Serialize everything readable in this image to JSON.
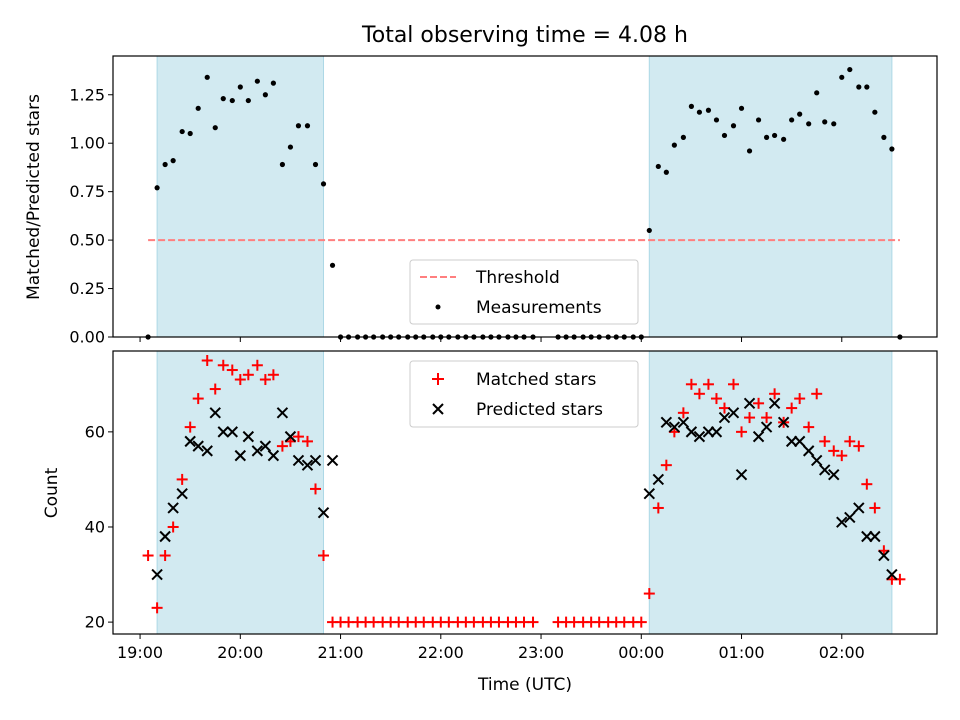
{
  "title": "Total observing time = 4.08 h",
  "x_axis_label": "Time (UTC)",
  "chart_data": [
    {
      "type": "scatter",
      "panel": "top",
      "ylabel": "Matched/Predicted stars",
      "ylim": [
        0,
        1.45
      ],
      "y_ticks": [
        0.0,
        0.25,
        0.5,
        0.75,
        1.0,
        1.25
      ],
      "y_tick_labels": [
        "0.00",
        "0.25",
        "0.50",
        "0.75",
        "1.00",
        "1.25"
      ],
      "xlim_hours": [
        18.73,
        26.95
      ],
      "shaded_intervals_hours": [
        [
          19.17,
          20.83
        ],
        [
          24.08,
          26.5
        ]
      ],
      "threshold": {
        "name": "Threshold",
        "y": 0.5,
        "x_range_hours": [
          19.08,
          26.58
        ],
        "color": "#ff7f7f"
      },
      "legend": {
        "placement": "lower center",
        "entries": [
          "Threshold",
          "Measurements"
        ]
      },
      "series": [
        {
          "name": "Measurements",
          "marker": "dot",
          "color": "#000000",
          "points": [
            [
              19.08,
              0.0
            ],
            [
              19.17,
              0.77
            ],
            [
              19.25,
              0.89
            ],
            [
              19.33,
              0.91
            ],
            [
              19.42,
              1.06
            ],
            [
              19.5,
              1.05
            ],
            [
              19.58,
              1.18
            ],
            [
              19.67,
              1.34
            ],
            [
              19.75,
              1.08
            ],
            [
              19.83,
              1.23
            ],
            [
              19.92,
              1.22
            ],
            [
              20.0,
              1.29
            ],
            [
              20.08,
              1.22
            ],
            [
              20.17,
              1.32
            ],
            [
              20.25,
              1.25
            ],
            [
              20.33,
              1.31
            ],
            [
              20.42,
              0.89
            ],
            [
              20.5,
              0.98
            ],
            [
              20.58,
              1.09
            ],
            [
              20.67,
              1.09
            ],
            [
              20.75,
              0.89
            ],
            [
              20.83,
              0.79
            ],
            [
              20.92,
              0.37
            ],
            [
              21.0,
              0.0
            ],
            [
              21.08,
              0.0
            ],
            [
              21.17,
              0.0
            ],
            [
              21.25,
              0.0
            ],
            [
              21.33,
              0.0
            ],
            [
              21.42,
              0.0
            ],
            [
              21.5,
              0.0
            ],
            [
              21.58,
              0.0
            ],
            [
              21.67,
              0.0
            ],
            [
              21.75,
              0.0
            ],
            [
              21.83,
              0.0
            ],
            [
              21.92,
              0.0
            ],
            [
              22.0,
              0.0
            ],
            [
              22.08,
              0.0
            ],
            [
              22.17,
              0.0
            ],
            [
              22.25,
              0.0
            ],
            [
              22.33,
              0.0
            ],
            [
              22.42,
              0.0
            ],
            [
              22.5,
              0.0
            ],
            [
              22.58,
              0.0
            ],
            [
              22.67,
              0.0
            ],
            [
              22.75,
              0.0
            ],
            [
              22.83,
              0.0
            ],
            [
              22.92,
              0.0
            ],
            [
              23.17,
              0.0
            ],
            [
              23.25,
              0.0
            ],
            [
              23.33,
              0.0
            ],
            [
              23.42,
              0.0
            ],
            [
              23.5,
              0.0
            ],
            [
              23.58,
              0.0
            ],
            [
              23.67,
              0.0
            ],
            [
              23.75,
              0.0
            ],
            [
              23.83,
              0.0
            ],
            [
              23.92,
              0.0
            ],
            [
              24.0,
              0.0
            ],
            [
              24.08,
              0.55
            ],
            [
              24.17,
              0.88
            ],
            [
              24.25,
              0.85
            ],
            [
              24.33,
              0.99
            ],
            [
              24.42,
              1.03
            ],
            [
              24.5,
              1.19
            ],
            [
              24.58,
              1.16
            ],
            [
              24.67,
              1.17
            ],
            [
              24.75,
              1.12
            ],
            [
              24.83,
              1.04
            ],
            [
              24.92,
              1.09
            ],
            [
              25.0,
              1.18
            ],
            [
              25.08,
              0.96
            ],
            [
              25.17,
              1.12
            ],
            [
              25.25,
              1.03
            ],
            [
              25.33,
              1.04
            ],
            [
              25.42,
              1.02
            ],
            [
              25.5,
              1.12
            ],
            [
              25.58,
              1.15
            ],
            [
              25.67,
              1.1
            ],
            [
              25.75,
              1.26
            ],
            [
              25.83,
              1.11
            ],
            [
              25.92,
              1.1
            ],
            [
              26.0,
              1.34
            ],
            [
              26.08,
              1.38
            ],
            [
              26.17,
              1.29
            ],
            [
              26.25,
              1.29
            ],
            [
              26.33,
              1.16
            ],
            [
              26.42,
              1.03
            ],
            [
              26.5,
              0.97
            ],
            [
              26.58,
              0.0
            ]
          ]
        }
      ]
    },
    {
      "type": "scatter",
      "panel": "bottom",
      "ylabel": "Count",
      "ylim": [
        17.5,
        77
      ],
      "y_ticks": [
        20,
        40,
        60
      ],
      "y_tick_labels": [
        "20",
        "40",
        "60"
      ],
      "xlim_hours": [
        18.73,
        26.95
      ],
      "x_ticks_hours": [
        19,
        20,
        21,
        22,
        23,
        24,
        25,
        26
      ],
      "x_tick_labels": [
        "19:00",
        "20:00",
        "21:00",
        "22:00",
        "23:00",
        "00:00",
        "01:00",
        "02:00"
      ],
      "shaded_intervals_hours": [
        [
          19.17,
          20.83
        ],
        [
          24.08,
          26.5
        ]
      ],
      "legend": {
        "placement": "upper center",
        "entries": [
          "Matched stars",
          "Predicted stars"
        ]
      },
      "series": [
        {
          "name": "Matched stars",
          "marker": "plus",
          "color": "#ff0000",
          "points": [
            [
              19.08,
              34
            ],
            [
              19.17,
              23
            ],
            [
              19.25,
              34
            ],
            [
              19.33,
              40
            ],
            [
              19.42,
              50
            ],
            [
              19.5,
              61
            ],
            [
              19.58,
              67
            ],
            [
              19.67,
              75
            ],
            [
              19.75,
              69
            ],
            [
              19.83,
              74
            ],
            [
              19.92,
              73
            ],
            [
              20.0,
              71
            ],
            [
              20.08,
              72
            ],
            [
              20.17,
              74
            ],
            [
              20.25,
              71
            ],
            [
              20.33,
              72
            ],
            [
              20.42,
              57
            ],
            [
              20.5,
              58
            ],
            [
              20.58,
              59
            ],
            [
              20.67,
              58
            ],
            [
              20.75,
              48
            ],
            [
              20.83,
              34
            ],
            [
              20.92,
              20
            ],
            [
              21.0,
              20
            ],
            [
              21.08,
              20
            ],
            [
              21.17,
              20
            ],
            [
              21.25,
              20
            ],
            [
              21.33,
              20
            ],
            [
              21.42,
              20
            ],
            [
              21.5,
              20
            ],
            [
              21.58,
              20
            ],
            [
              21.67,
              20
            ],
            [
              21.75,
              20
            ],
            [
              21.83,
              20
            ],
            [
              21.92,
              20
            ],
            [
              22.0,
              20
            ],
            [
              22.08,
              20
            ],
            [
              22.17,
              20
            ],
            [
              22.25,
              20
            ],
            [
              22.33,
              20
            ],
            [
              22.42,
              20
            ],
            [
              22.5,
              20
            ],
            [
              22.58,
              20
            ],
            [
              22.67,
              20
            ],
            [
              22.75,
              20
            ],
            [
              22.83,
              20
            ],
            [
              22.92,
              20
            ],
            [
              23.17,
              20
            ],
            [
              23.25,
              20
            ],
            [
              23.33,
              20
            ],
            [
              23.42,
              20
            ],
            [
              23.5,
              20
            ],
            [
              23.58,
              20
            ],
            [
              23.67,
              20
            ],
            [
              23.75,
              20
            ],
            [
              23.83,
              20
            ],
            [
              23.92,
              20
            ],
            [
              24.0,
              20
            ],
            [
              24.08,
              26
            ],
            [
              24.17,
              44
            ],
            [
              24.25,
              53
            ],
            [
              24.33,
              60
            ],
            [
              24.42,
              64
            ],
            [
              24.5,
              70
            ],
            [
              24.58,
              68
            ],
            [
              24.67,
              70
            ],
            [
              24.75,
              67
            ],
            [
              24.83,
              65
            ],
            [
              24.92,
              70
            ],
            [
              25.0,
              60
            ],
            [
              25.08,
              63
            ],
            [
              25.17,
              66
            ],
            [
              25.25,
              63
            ],
            [
              25.33,
              68
            ],
            [
              25.42,
              62
            ],
            [
              25.5,
              65
            ],
            [
              25.58,
              67
            ],
            [
              25.67,
              61
            ],
            [
              25.75,
              68
            ],
            [
              25.83,
              58
            ],
            [
              25.92,
              56
            ],
            [
              26.0,
              55
            ],
            [
              26.08,
              58
            ],
            [
              26.17,
              57
            ],
            [
              26.25,
              49
            ],
            [
              26.33,
              44
            ],
            [
              26.42,
              35
            ],
            [
              26.5,
              29
            ],
            [
              26.58,
              29
            ]
          ]
        },
        {
          "name": "Predicted stars",
          "marker": "x",
          "color": "#000000",
          "points": [
            [
              19.17,
              30
            ],
            [
              19.25,
              38
            ],
            [
              19.33,
              44
            ],
            [
              19.42,
              47
            ],
            [
              19.5,
              58
            ],
            [
              19.58,
              57
            ],
            [
              19.67,
              56
            ],
            [
              19.75,
              64
            ],
            [
              19.83,
              60
            ],
            [
              19.92,
              60
            ],
            [
              20.0,
              55
            ],
            [
              20.08,
              59
            ],
            [
              20.17,
              56
            ],
            [
              20.25,
              57
            ],
            [
              20.33,
              55
            ],
            [
              20.42,
              64
            ],
            [
              20.5,
              59
            ],
            [
              20.58,
              54
            ],
            [
              20.67,
              53
            ],
            [
              20.75,
              54
            ],
            [
              20.83,
              43
            ],
            [
              20.92,
              54
            ],
            [
              24.08,
              47
            ],
            [
              24.17,
              50
            ],
            [
              24.25,
              62
            ],
            [
              24.33,
              61
            ],
            [
              24.42,
              62
            ],
            [
              24.5,
              60
            ],
            [
              24.58,
              59
            ],
            [
              24.67,
              60
            ],
            [
              24.75,
              60
            ],
            [
              24.83,
              63
            ],
            [
              24.92,
              64
            ],
            [
              25.0,
              51
            ],
            [
              25.08,
              66
            ],
            [
              25.17,
              59
            ],
            [
              25.25,
              61
            ],
            [
              25.33,
              66
            ],
            [
              25.42,
              62
            ],
            [
              25.5,
              58
            ],
            [
              25.58,
              58
            ],
            [
              25.67,
              56
            ],
            [
              25.75,
              54
            ],
            [
              25.83,
              52
            ],
            [
              25.92,
              51
            ],
            [
              26.0,
              41
            ],
            [
              26.08,
              42
            ],
            [
              26.17,
              44
            ],
            [
              26.25,
              38
            ],
            [
              26.33,
              38
            ],
            [
              26.42,
              34
            ],
            [
              26.5,
              30
            ]
          ]
        }
      ]
    }
  ],
  "colors": {
    "shade": "#add8e6",
    "threshold": "#ff7f7f",
    "matched": "#ff0000",
    "predicted": "#000000",
    "measurements": "#000000"
  }
}
